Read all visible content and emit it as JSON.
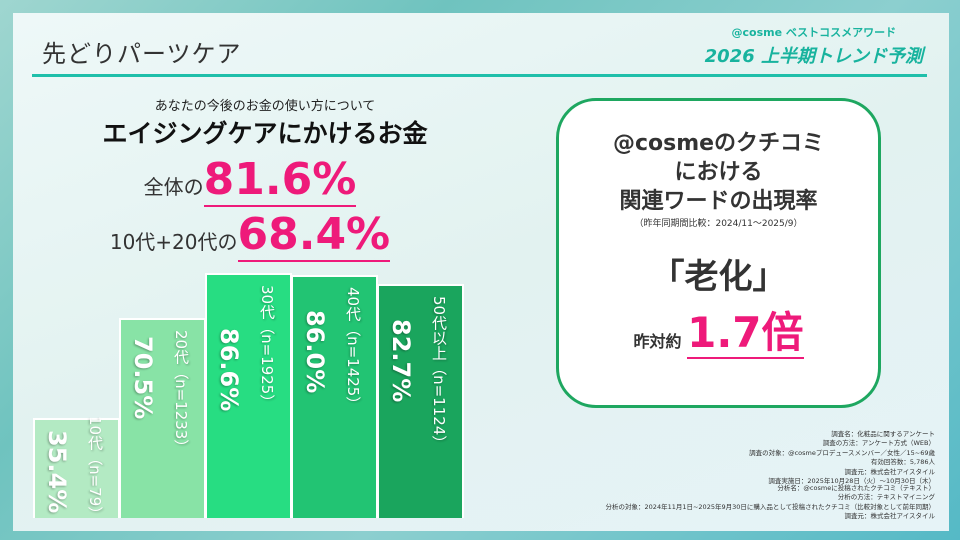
{
  "header": {
    "title": "先どりパーツケア",
    "brand_line": "@cosme ベストコスメアワード",
    "brand_title": "2026 上半期トレンド予測"
  },
  "survey": {
    "question": "あなたの今後のお金の使い方について",
    "headline": "エイジングケアにかけるお金",
    "overall_label": "全体の",
    "overall_value": "81.6%",
    "youth_label": "10代+20代の",
    "youth_value": "68.4%"
  },
  "chart_data": {
    "type": "bar",
    "categories": [
      "10代（n=79）",
      "20代（n=1233）",
      "30代（n=1925）",
      "40代（n=1425）",
      "50代以上（n=1124）"
    ],
    "values": [
      35.4,
      70.5,
      86.6,
      86.0,
      82.7
    ],
    "value_labels": [
      "35.4%",
      "70.5%",
      "86.6%",
      "86.0%",
      "82.7%"
    ],
    "colors": [
      "#b3eac3",
      "#88e3a6",
      "#27dd82",
      "#22c473",
      "#1aa55d"
    ],
    "ylim": [
      0,
      100
    ],
    "grid": false
  },
  "callout": {
    "heading_lines": [
      "@cosmeのクチコミ",
      "における",
      "関連ワードの出現率"
    ],
    "note": "（昨年同期間比較：2024/11～2025/9）",
    "word": "「老化」",
    "ratio_label": "昨対約",
    "ratio_value": "1.7倍",
    "border_color": "#1ea760",
    "accent": "#ee1a7a"
  },
  "footnotes": {
    "survey": [
      "調査名：化粧品に関するアンケート",
      "調査の方法：アンケート方式（WEB）",
      "調査の対象：@cosmeプロデュースメンバー／女性／15~69歳",
      "有効回答数：5,786人",
      "調査元：株式会社アイスタイル",
      "調査実施日：2025年10月28日（火）～10月30日（木）"
    ],
    "analysis": [
      "分析名：@cosmeに投稿されたクチコミ（テキスト）",
      "分析の方法：テキストマイニング",
      "分析の対象：2024年11月1日~2025年9月30日に購入品として投稿されたクチコミ（比較対象として前年同期）",
      "調査元：株式会社アイスタイル"
    ]
  }
}
